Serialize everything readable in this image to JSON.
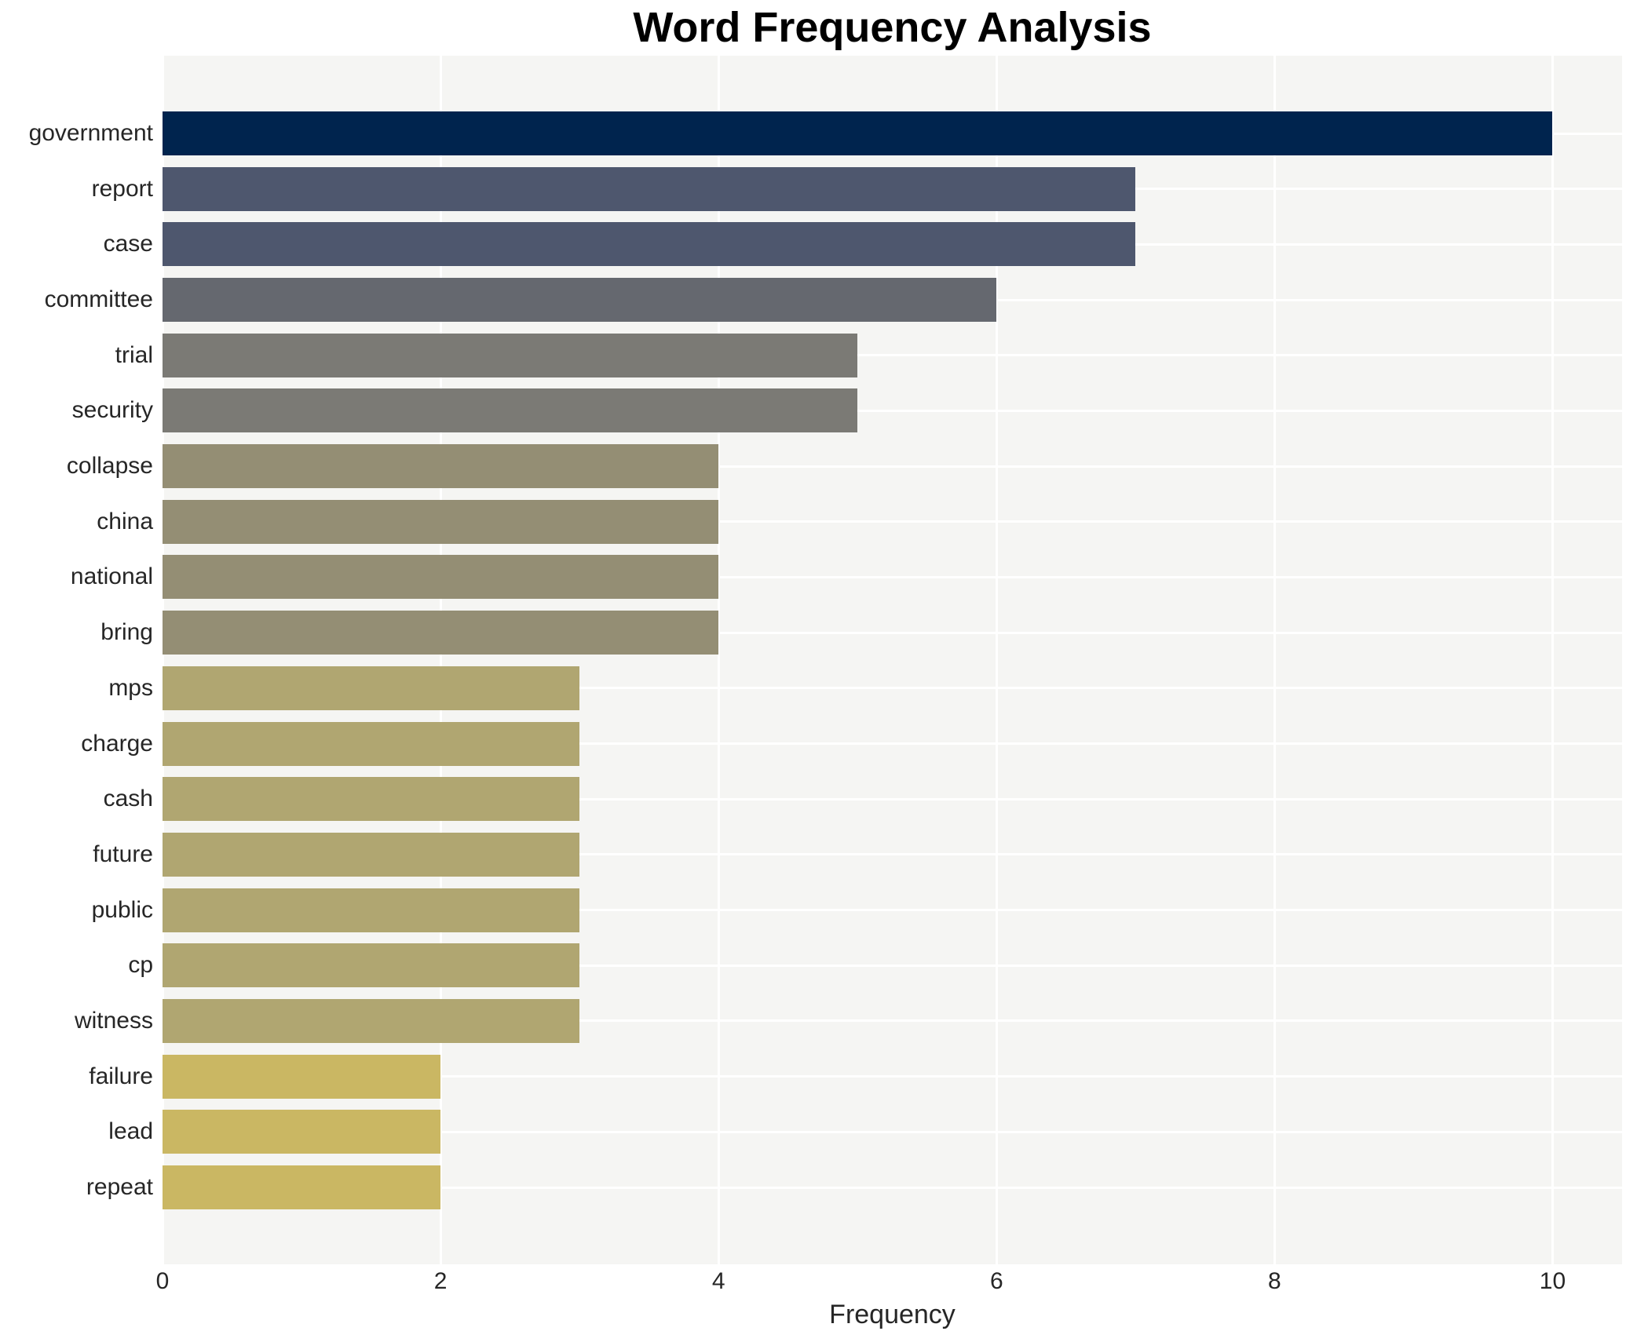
{
  "chart_data": {
    "type": "bar",
    "orientation": "horizontal",
    "title": "Word Frequency Analysis",
    "xlabel": "Frequency",
    "ylabel": "",
    "categories": [
      "government",
      "report",
      "case",
      "committee",
      "trial",
      "security",
      "collapse",
      "china",
      "national",
      "bring",
      "mps",
      "charge",
      "cash",
      "future",
      "public",
      "cp",
      "witness",
      "failure",
      "lead",
      "repeat"
    ],
    "values": [
      10,
      7,
      7,
      6,
      5,
      5,
      4,
      4,
      4,
      4,
      3,
      3,
      3,
      3,
      3,
      3,
      3,
      2,
      2,
      2
    ],
    "bar_colors": [
      "#00244e",
      "#4e576e",
      "#4e576e",
      "#65686f",
      "#7b7a75",
      "#7b7a75",
      "#948e74",
      "#948e74",
      "#948e74",
      "#948e74",
      "#b0a671",
      "#b0a671",
      "#b0a671",
      "#b0a671",
      "#b0a671",
      "#b0a671",
      "#b0a671",
      "#cab763",
      "#cab763",
      "#cab763"
    ],
    "xlim": [
      0,
      10.5
    ],
    "xticks": [
      0,
      2,
      4,
      6,
      8,
      10
    ],
    "grid": true,
    "legend": false,
    "plot_background": "#f5f5f3",
    "gridline_color": "#ffffff",
    "text_color": "#262626",
    "title_color": "#000000"
  }
}
